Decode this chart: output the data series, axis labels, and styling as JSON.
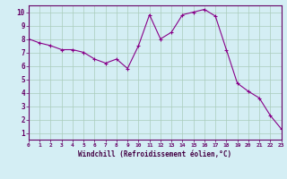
{
  "x": [
    0,
    1,
    2,
    3,
    4,
    5,
    6,
    7,
    8,
    9,
    10,
    11,
    12,
    13,
    14,
    15,
    16,
    17,
    18,
    19,
    20,
    21,
    22,
    23
  ],
  "y": [
    8.0,
    7.7,
    7.5,
    7.2,
    7.2,
    7.0,
    6.5,
    6.2,
    6.5,
    5.8,
    7.5,
    9.8,
    8.0,
    8.5,
    9.8,
    10.0,
    10.2,
    9.7,
    7.2,
    4.7,
    4.1,
    3.6,
    2.3,
    1.3
  ],
  "xlim": [
    0,
    23
  ],
  "ylim": [
    0.5,
    10.5
  ],
  "yticks": [
    1,
    2,
    3,
    4,
    5,
    6,
    7,
    8,
    9,
    10
  ],
  "xticks": [
    0,
    1,
    2,
    3,
    4,
    5,
    6,
    7,
    8,
    9,
    10,
    11,
    12,
    13,
    14,
    15,
    16,
    17,
    18,
    19,
    20,
    21,
    22,
    23
  ],
  "xlabel": "Windchill (Refroidissement éolien,°C)",
  "line_color": "#880088",
  "marker": "+",
  "bg_color": "#d4eef4",
  "grid_color": "#aaccbb",
  "spine_color": "#660066",
  "tick_color": "#660066",
  "label_color": "#440044"
}
